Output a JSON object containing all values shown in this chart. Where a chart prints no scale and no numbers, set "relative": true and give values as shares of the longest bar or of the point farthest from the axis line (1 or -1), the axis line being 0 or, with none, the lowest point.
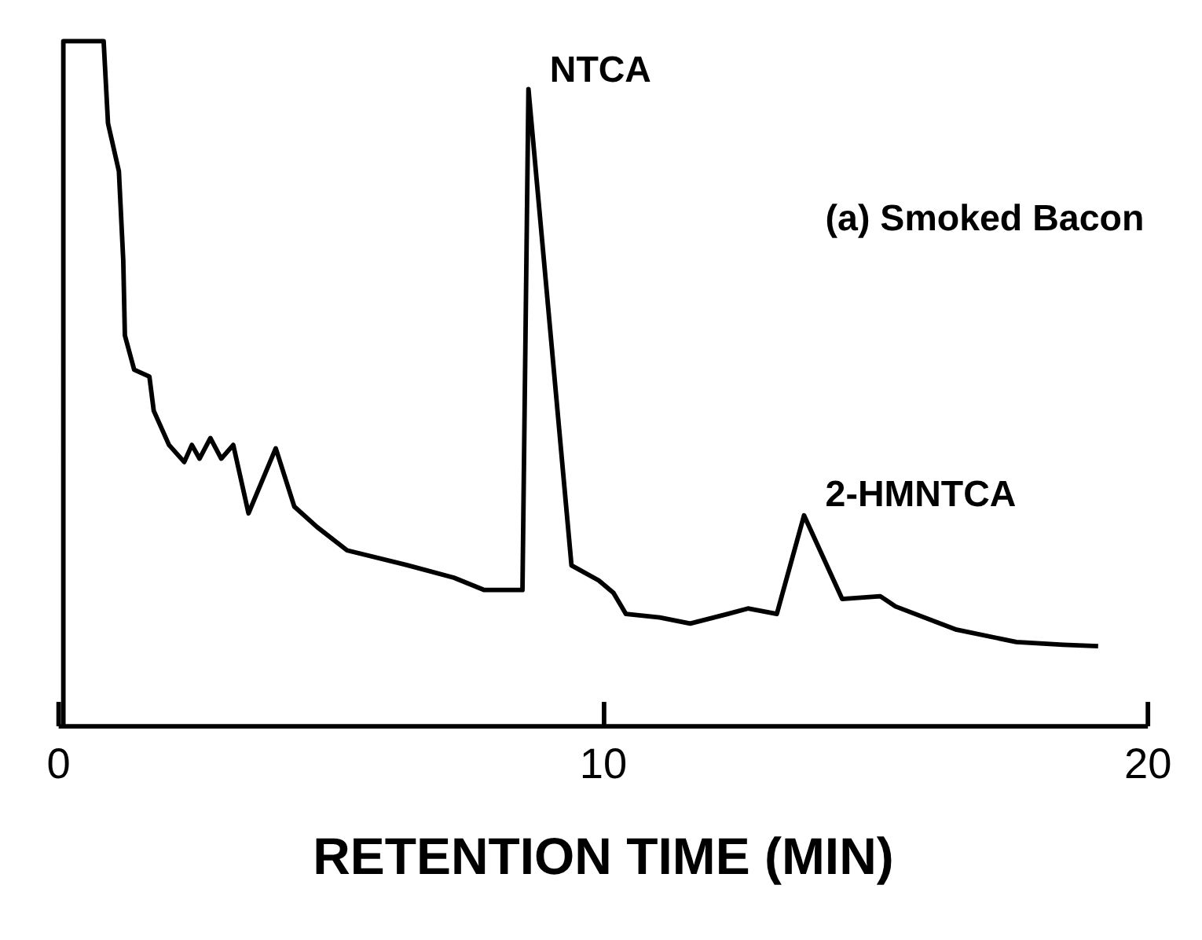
{
  "chart_data": {
    "type": "line",
    "relative": true,
    "xlabel": "RETENTION TIME (MIN)",
    "xlim": [
      0,
      20
    ],
    "xticks": [
      0,
      10,
      20
    ],
    "grid": false,
    "tick_labels": "x",
    "marker": "none",
    "line_style": "solid",
    "annotations": [
      "(a) Smoked Bacon",
      {
        "text": "NTCA",
        "x": 8.64,
        "y": 0.93
      },
      {
        "text": "2-HMNTCA",
        "x": 13.7,
        "y": 0.31
      }
    ],
    "series": [
      {
        "color": "#000000",
        "x": [
          0.1,
          0.1,
          0.84,
          0.92,
          1.12,
          1.2,
          1.23,
          1.4,
          1.68,
          1.76,
          2.04,
          2.32,
          2.46,
          2.6,
          2.8,
          3.0,
          3.22,
          3.5,
          4.0,
          4.34,
          4.76,
          5.31,
          6.43,
          7.27,
          7.83,
          8.53,
          8.64,
          9.43,
          9.93,
          10.2,
          10.43,
          11.05,
          11.61,
          12.3,
          12.67,
          13.2,
          13.7,
          14.4,
          15.1,
          15.38,
          16.5,
          17.6,
          18.46,
          19.1
        ],
        "values": [
          0,
          1.0,
          1.0,
          0.88,
          0.81,
          0.68,
          0.57,
          0.52,
          0.51,
          0.46,
          0.41,
          0.385,
          0.41,
          0.39,
          0.42,
          0.39,
          0.41,
          0.31,
          0.405,
          0.32,
          0.29,
          0.256,
          0.234,
          0.216,
          0.198,
          0.198,
          0.93,
          0.234,
          0.212,
          0.194,
          0.163,
          0.158,
          0.149,
          0.163,
          0.171,
          0.163,
          0.307,
          0.185,
          0.189,
          0.174,
          0.14,
          0.122,
          0.118,
          0.116
        ]
      }
    ]
  }
}
